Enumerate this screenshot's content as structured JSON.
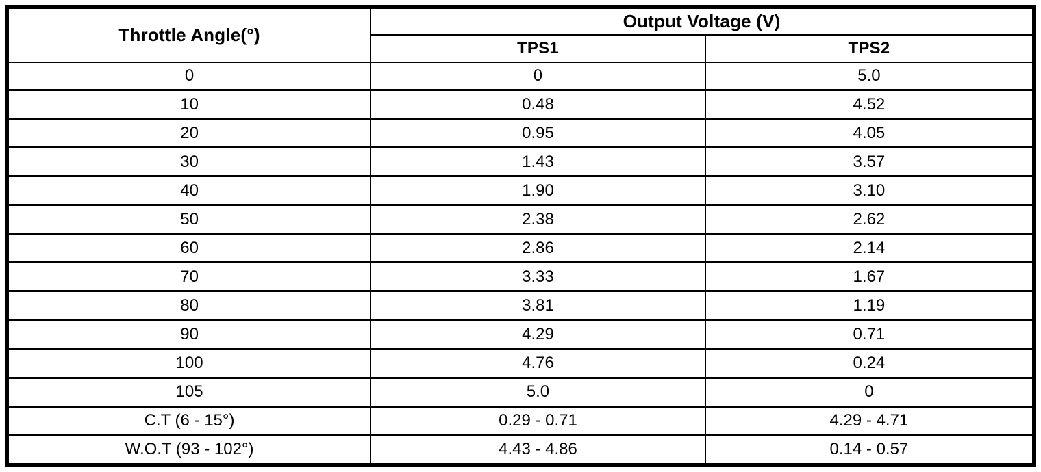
{
  "table": {
    "header": {
      "throttle_angle": "Throttle Angle(°)",
      "output_voltage": "Output Voltage (V)",
      "tps1": "TPS1",
      "tps2": "TPS2"
    },
    "rows": [
      {
        "angle": "0",
        "tps1": "0",
        "tps2": "5.0"
      },
      {
        "angle": "10",
        "tps1": "0.48",
        "tps2": "4.52"
      },
      {
        "angle": "20",
        "tps1": "0.95",
        "tps2": "4.05"
      },
      {
        "angle": "30",
        "tps1": "1.43",
        "tps2": "3.57"
      },
      {
        "angle": "40",
        "tps1": "1.90",
        "tps2": "3.10"
      },
      {
        "angle": "50",
        "tps1": "2.38",
        "tps2": "2.62"
      },
      {
        "angle": "60",
        "tps1": "2.86",
        "tps2": "2.14"
      },
      {
        "angle": "70",
        "tps1": "3.33",
        "tps2": "1.67"
      },
      {
        "angle": "80",
        "tps1": "3.81",
        "tps2": "1.19"
      },
      {
        "angle": "90",
        "tps1": "4.29",
        "tps2": "0.71"
      },
      {
        "angle": "100",
        "tps1": "4.76",
        "tps2": "0.24"
      },
      {
        "angle": "105",
        "tps1": "5.0",
        "tps2": "0"
      },
      {
        "angle": "C.T (6 - 15°)",
        "tps1": "0.29 - 0.71",
        "tps2": "4.29 - 4.71"
      },
      {
        "angle": "W.O.T (93 - 102°)",
        "tps1": "4.43 - 4.86",
        "tps2": "0.14 - 0.57"
      }
    ]
  },
  "colors": {
    "border": "#000000",
    "text": "#000000",
    "background": "#ffffff"
  },
  "chart_data": {
    "type": "table",
    "title": "Output Voltage (V)",
    "columns": [
      "Throttle Angle(°)",
      "TPS1",
      "TPS2"
    ],
    "x": [
      0,
      10,
      20,
      30,
      40,
      50,
      60,
      70,
      80,
      90,
      100,
      105
    ],
    "series": [
      {
        "name": "TPS1",
        "values": [
          0,
          0.48,
          0.95,
          1.43,
          1.9,
          2.38,
          2.86,
          3.33,
          3.81,
          4.29,
          4.76,
          5.0
        ]
      },
      {
        "name": "TPS2",
        "values": [
          5.0,
          4.52,
          4.05,
          3.57,
          3.1,
          2.62,
          2.14,
          1.67,
          1.19,
          0.71,
          0.24,
          0
        ]
      }
    ],
    "annotations": [
      {
        "label": "C.T (6 - 15°)",
        "tps1_range": "0.29 - 0.71",
        "tps2_range": "4.29 - 4.71"
      },
      {
        "label": "W.O.T (93 - 102°)",
        "tps1_range": "4.43 - 4.86",
        "tps2_range": "0.14 - 0.57"
      }
    ]
  }
}
